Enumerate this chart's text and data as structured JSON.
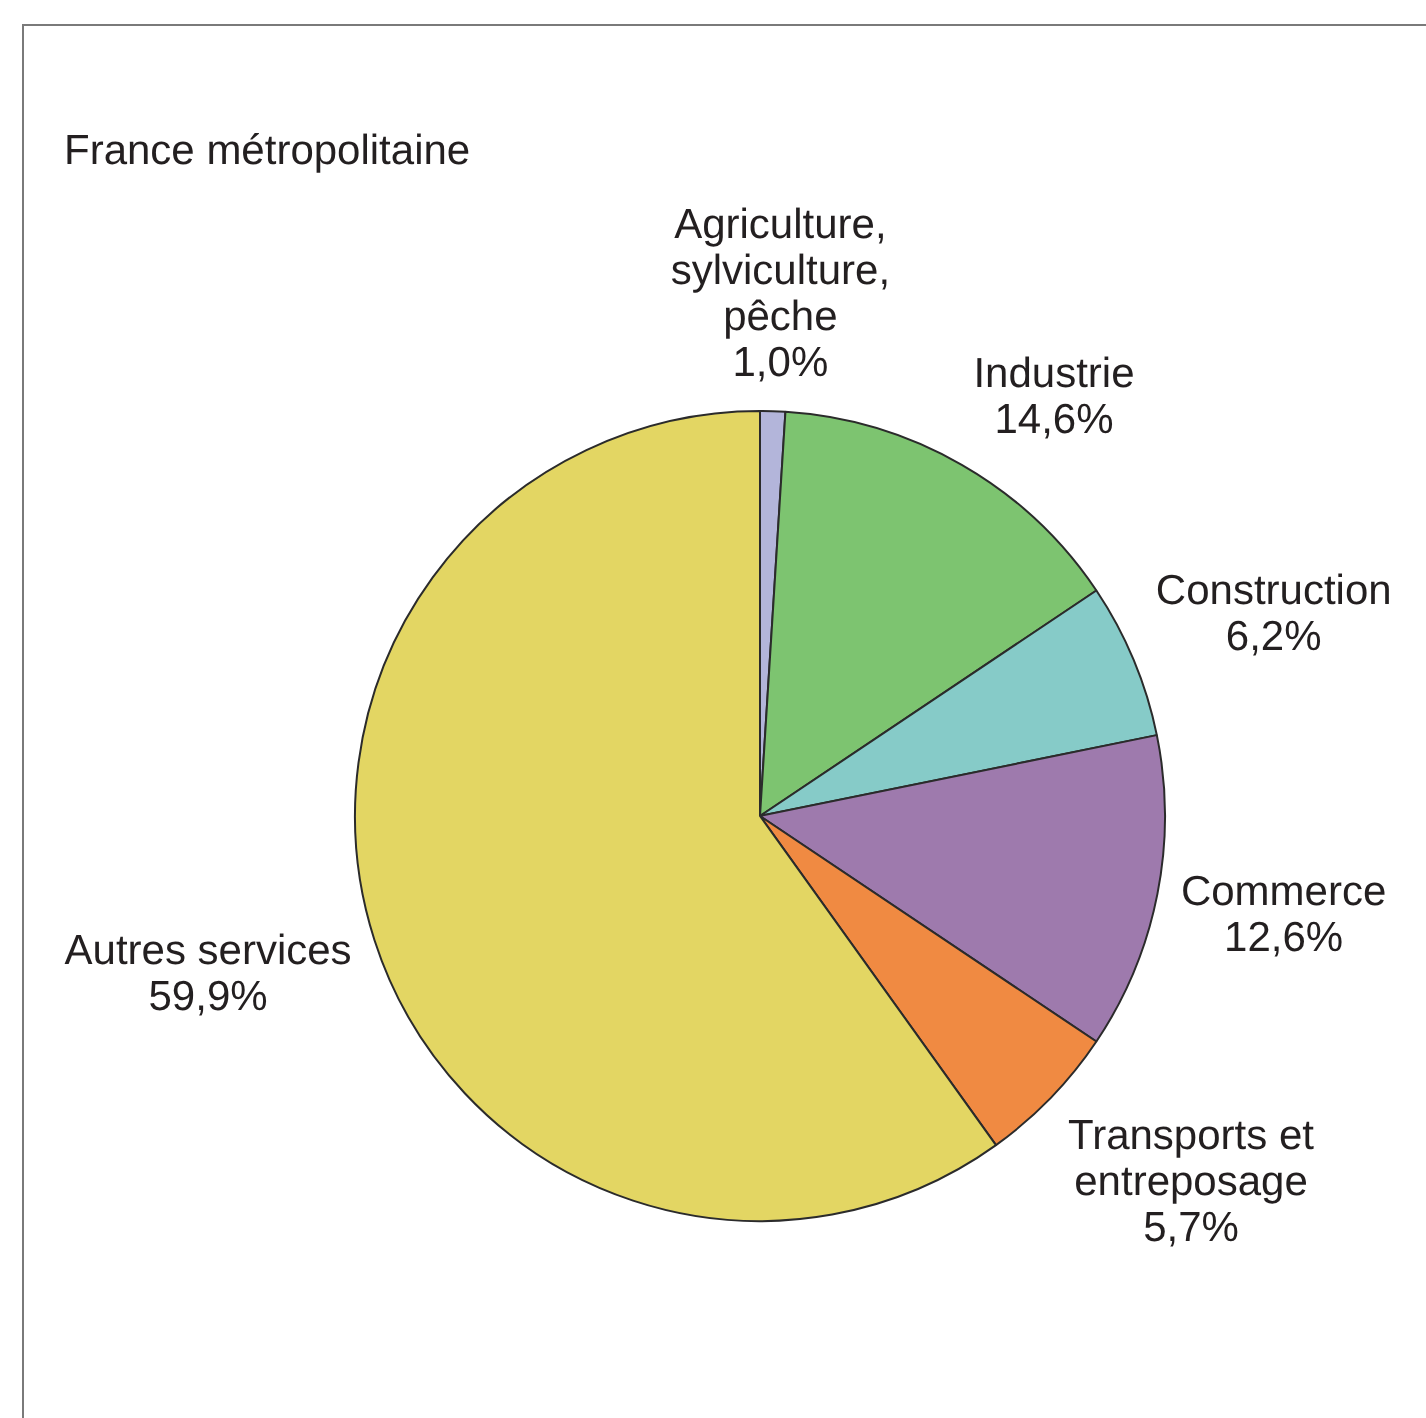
{
  "chart_data": {
    "type": "pie",
    "title": "France métropolitaine",
    "categories": [
      "Agriculture, sylviculture, pêche",
      "Industrie",
      "Construction",
      "Commerce",
      "Transports et entreposage",
      "Autres services"
    ],
    "values": [
      1.0,
      14.6,
      6.2,
      12.6,
      5.7,
      59.9
    ],
    "colors": [
      "#b3b5da",
      "#7dc470",
      "#86cbc8",
      "#9e7aad",
      "#f08a42",
      "#e3d663"
    ],
    "value_labels": [
      "1,0%",
      "14,6%",
      "6,2%",
      "12,6%",
      "5,7%",
      "59,9%"
    ]
  }
}
